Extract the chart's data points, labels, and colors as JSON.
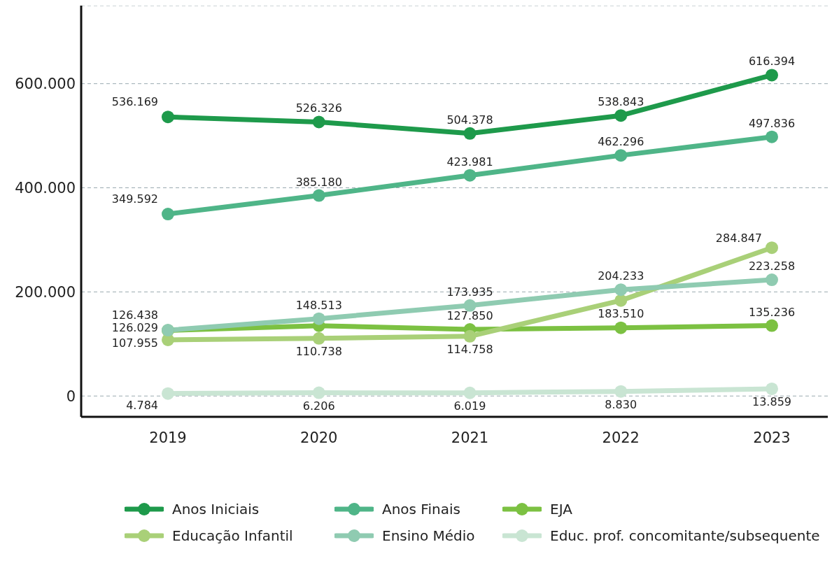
{
  "chart_data": {
    "type": "line",
    "categories": [
      "2019",
      "2020",
      "2021",
      "2022",
      "2023"
    ],
    "series": [
      {
        "name": "Anos Iniciais",
        "color": "#1e9a4b",
        "values": [
          536169,
          526326,
          504378,
          538843,
          616394
        ],
        "value_labels": [
          "536.169",
          "526.326",
          "504.378",
          "538.843",
          "616.394"
        ]
      },
      {
        "name": "Anos Finais",
        "color": "#4fb588",
        "values": [
          349592,
          385180,
          423981,
          462296,
          497836
        ],
        "value_labels": [
          "349.592",
          "385.180",
          "423.981",
          "462.296",
          "497.836"
        ]
      },
      {
        "name": "EJA",
        "color": "#7cc142",
        "values": [
          126029,
          135000,
          127850,
          131000,
          135236
        ],
        "value_labels": [
          "126.029",
          null,
          "127.850",
          null,
          "135.236"
        ]
      },
      {
        "name": "Educação Infantil",
        "color": "#a9d078",
        "values": [
          107955,
          110738,
          114758,
          183510,
          284847
        ],
        "value_labels": [
          "107.955",
          "110.738",
          "114.758",
          "183.510",
          "284.847"
        ]
      },
      {
        "name": "Ensino Médio",
        "color": "#8fcbb1",
        "values": [
          126438,
          148513,
          173935,
          204233,
          223258
        ],
        "value_labels": [
          "126.438",
          "148.513",
          "173.935",
          "204.233",
          "223.258"
        ]
      },
      {
        "name": "Educ. prof. concomitante/subsequente",
        "color": "#c9e5d3",
        "values": [
          4784,
          6206,
          6019,
          8830,
          13859
        ],
        "value_labels": [
          "4.784",
          "6.206",
          "6.019",
          "8.830",
          "13.859"
        ]
      }
    ],
    "ylim": [
      -40000,
      750000
    ],
    "yticks": [
      {
        "value": 0,
        "label": "0"
      },
      {
        "value": 200000,
        "label": "200.000"
      },
      {
        "value": 400000,
        "label": "400.000"
      },
      {
        "value": 600000,
        "label": "600.000"
      }
    ],
    "grid": "y",
    "legend": "bottom",
    "marker": "circle",
    "line_style": "solid"
  }
}
